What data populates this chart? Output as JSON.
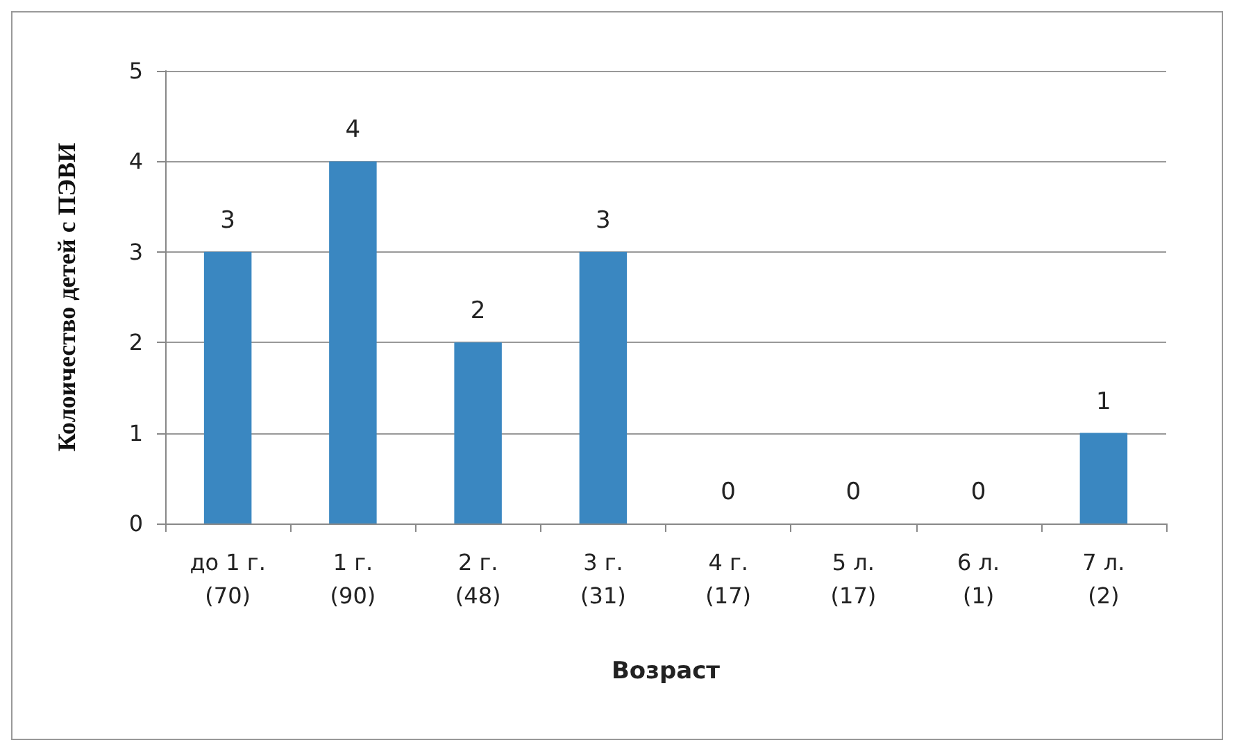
{
  "chart_data": {
    "type": "bar",
    "xlabel": "Возраст",
    "ylabel": "Колоичество детей с ПЭВИ",
    "categories": [
      "до 1 г.\n(70)",
      "1 г.\n(90)",
      "2 г.\n(48)",
      "3 г.\n(31)",
      "4 г.\n(17)",
      "5 л.\n(17)",
      "6 л.\n(1)",
      "7 л.\n(2)"
    ],
    "values": [
      3,
      4,
      2,
      3,
      0,
      0,
      0,
      1
    ],
    "color": "#3a87c1",
    "ylim": [
      0,
      5
    ],
    "yticks": [
      0,
      1,
      2,
      3,
      4,
      5
    ],
    "grid": "y",
    "data_labels": true
  }
}
